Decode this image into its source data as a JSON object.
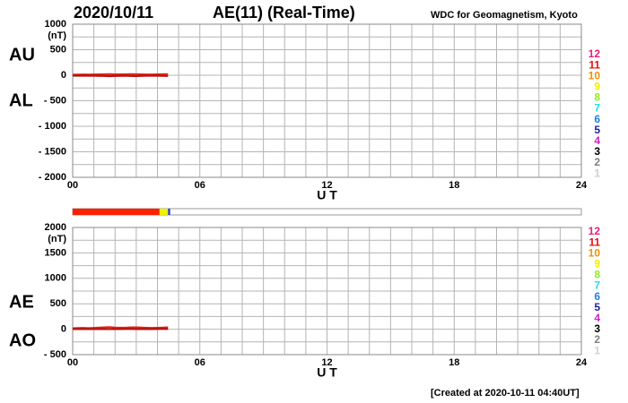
{
  "header": {
    "date": "2020/10/11",
    "title": "AE(11) (Real-Time)",
    "source": "WDC for Geomagnetism, Kyoto"
  },
  "footer": "[Created at 2020-10-11 04:40UT]",
  "coverage": {
    "segments": [
      {
        "x": [
          0,
          4.1
        ],
        "color": "#ff2000"
      },
      {
        "x": [
          4.1,
          4.5
        ],
        "color": "#f0f000"
      },
      {
        "x": [
          4.5,
          4.6
        ],
        "color": "#2040c0"
      }
    ]
  },
  "chart_data": [
    {
      "type": "line",
      "unit_label": "(nT)",
      "xlabel": "U T",
      "x": [
        0,
        0.25,
        0.5,
        0.75,
        1,
        1.25,
        1.5,
        1.75,
        2,
        2.25,
        2.5,
        2.75,
        3,
        3.25,
        3.5,
        3.75,
        4,
        4.25,
        4.5
      ],
      "series": [
        {
          "name": "AU",
          "color": "#e02010",
          "values": [
            12,
            14,
            15,
            13,
            16,
            18,
            20,
            22,
            18,
            17,
            19,
            21,
            20,
            18,
            16,
            15,
            17,
            19,
            22
          ]
        },
        {
          "name": "AL",
          "color": "#b01010",
          "values": [
            -8,
            -10,
            -12,
            -9,
            -11,
            -14,
            -16,
            -20,
            -15,
            -13,
            -12,
            -15,
            -17,
            -14,
            -12,
            -10,
            -11,
            -13,
            -15
          ]
        }
      ],
      "xlim": [
        0,
        24
      ],
      "xticks": [
        {
          "value": 0,
          "label": "00"
        },
        {
          "value": 6,
          "label": "06"
        },
        12,
        18,
        24
      ],
      "ylim": [
        -2000,
        1000
      ],
      "yticks": [
        1000,
        500,
        0,
        {
          "value": -500,
          "label": "- 500"
        },
        {
          "value": -1000,
          "label": "- 1000"
        },
        {
          "value": -1500,
          "label": "- 1500"
        },
        {
          "value": -2000,
          "label": "- 2000"
        }
      ],
      "grid": true,
      "station_legend": [
        {
          "label": "12",
          "color": "#e8207a"
        },
        {
          "label": "11",
          "color": "#e81010"
        },
        {
          "label": "10",
          "color": "#f09000"
        },
        {
          "label": "9",
          "color": "#f0f000"
        },
        {
          "label": "8",
          "color": "#90f020"
        },
        {
          "label": "7",
          "color": "#20e0f0"
        },
        {
          "label": "6",
          "color": "#2080e0"
        },
        {
          "label": "5",
          "color": "#2020a0"
        },
        {
          "label": "4",
          "color": "#d020d0"
        },
        {
          "label": "3",
          "color": "#000000"
        },
        {
          "label": "2",
          "color": "#808080"
        },
        {
          "label": "1",
          "color": "#d0d0d0"
        }
      ]
    },
    {
      "type": "line",
      "unit_label": "(nT)",
      "xlabel": "U T",
      "x": [
        0,
        0.25,
        0.5,
        0.75,
        1,
        1.25,
        1.5,
        1.75,
        2,
        2.25,
        2.5,
        2.75,
        3,
        3.25,
        3.5,
        3.75,
        4,
        4.25,
        4.5
      ],
      "series": [
        {
          "name": "AE",
          "color": "#e02010",
          "values": [
            20,
            24,
            27,
            22,
            27,
            32,
            36,
            42,
            33,
            30,
            31,
            36,
            37,
            32,
            28,
            25,
            28,
            32,
            37
          ]
        },
        {
          "name": "AO",
          "color": "#b01010",
          "values": [
            2,
            2,
            1.5,
            2,
            2.5,
            2,
            2,
            1,
            1.5,
            2,
            3.5,
            3,
            1.5,
            2,
            2,
            2.5,
            3,
            3,
            3.5
          ]
        }
      ],
      "xlim": [
        0,
        24
      ],
      "xticks": [
        {
          "value": 0,
          "label": "00"
        },
        {
          "value": 6,
          "label": "06"
        },
        12,
        18,
        24
      ],
      "ylim": [
        -500,
        2000
      ],
      "yticks": [
        2000,
        1500,
        1000,
        500,
        0,
        {
          "value": -500,
          "label": "- 500"
        }
      ],
      "grid": true,
      "station_legend": [
        {
          "label": "12",
          "color": "#e8207a"
        },
        {
          "label": "11",
          "color": "#e81010"
        },
        {
          "label": "10",
          "color": "#f09000"
        },
        {
          "label": "9",
          "color": "#f0f000"
        },
        {
          "label": "8",
          "color": "#90f020"
        },
        {
          "label": "7",
          "color": "#20e0f0"
        },
        {
          "label": "6",
          "color": "#2080e0"
        },
        {
          "label": "5",
          "color": "#2020a0"
        },
        {
          "label": "4",
          "color": "#d020d0"
        },
        {
          "label": "3",
          "color": "#000000"
        },
        {
          "label": "2",
          "color": "#808080"
        },
        {
          "label": "1",
          "color": "#d0d0d0"
        }
      ]
    }
  ]
}
